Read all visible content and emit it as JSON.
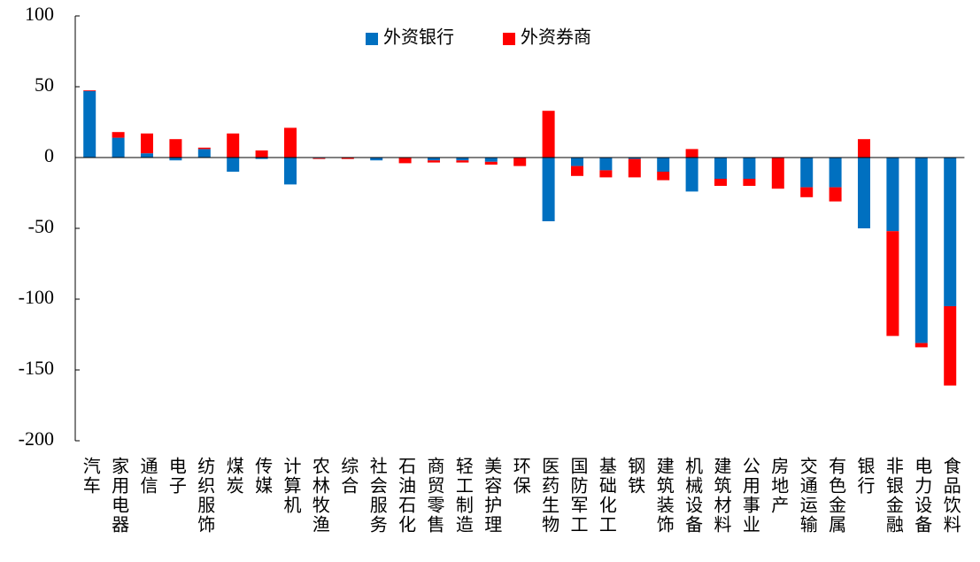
{
  "chart_data": {
    "type": "bar",
    "stacked": true,
    "categories": [
      "汽车",
      "家用电器",
      "通信",
      "电子",
      "纺织服饰",
      "煤炭",
      "传媒",
      "计算机",
      "农林牧渔",
      "综合",
      "社会服务",
      "石油石化",
      "商贸零售",
      "轻工制造",
      "美容护理",
      "环保",
      "医药生物",
      "国防军工",
      "基础化工",
      "钢铁",
      "建筑装饰",
      "机械设备",
      "建筑材料",
      "公用事业",
      "房地产",
      "交通运输",
      "有色金属",
      "银行",
      "非银金融",
      "电力设备",
      "食品饮料"
    ],
    "series": [
      {
        "name": "外资银行",
        "color": "#0070c0",
        "values": [
          47,
          14,
          3,
          -2,
          6,
          -10,
          -1,
          -19,
          -0.5,
          0,
          -2,
          0,
          -2,
          -2,
          -3,
          0,
          -45,
          -6,
          -9,
          -1,
          -10,
          -24,
          -15,
          -15,
          0,
          -21,
          -21,
          -50,
          -52,
          -131,
          -105
        ]
      },
      {
        "name": "外资券商",
        "color": "#ff0000",
        "values": [
          0.5,
          4,
          14,
          13,
          1,
          17,
          5,
          21,
          -0.5,
          -1,
          0,
          -4,
          -1.5,
          -1.5,
          -2,
          -6,
          33,
          -7,
          -5,
          -13,
          -6,
          6,
          -5,
          -5,
          -22,
          -7,
          -10,
          13,
          -74,
          -3,
          -56
        ]
      }
    ],
    "ylim": [
      -200,
      100
    ],
    "yticks": [
      -200,
      -150,
      -100,
      -50,
      0,
      50,
      100
    ],
    "legend": "top"
  }
}
